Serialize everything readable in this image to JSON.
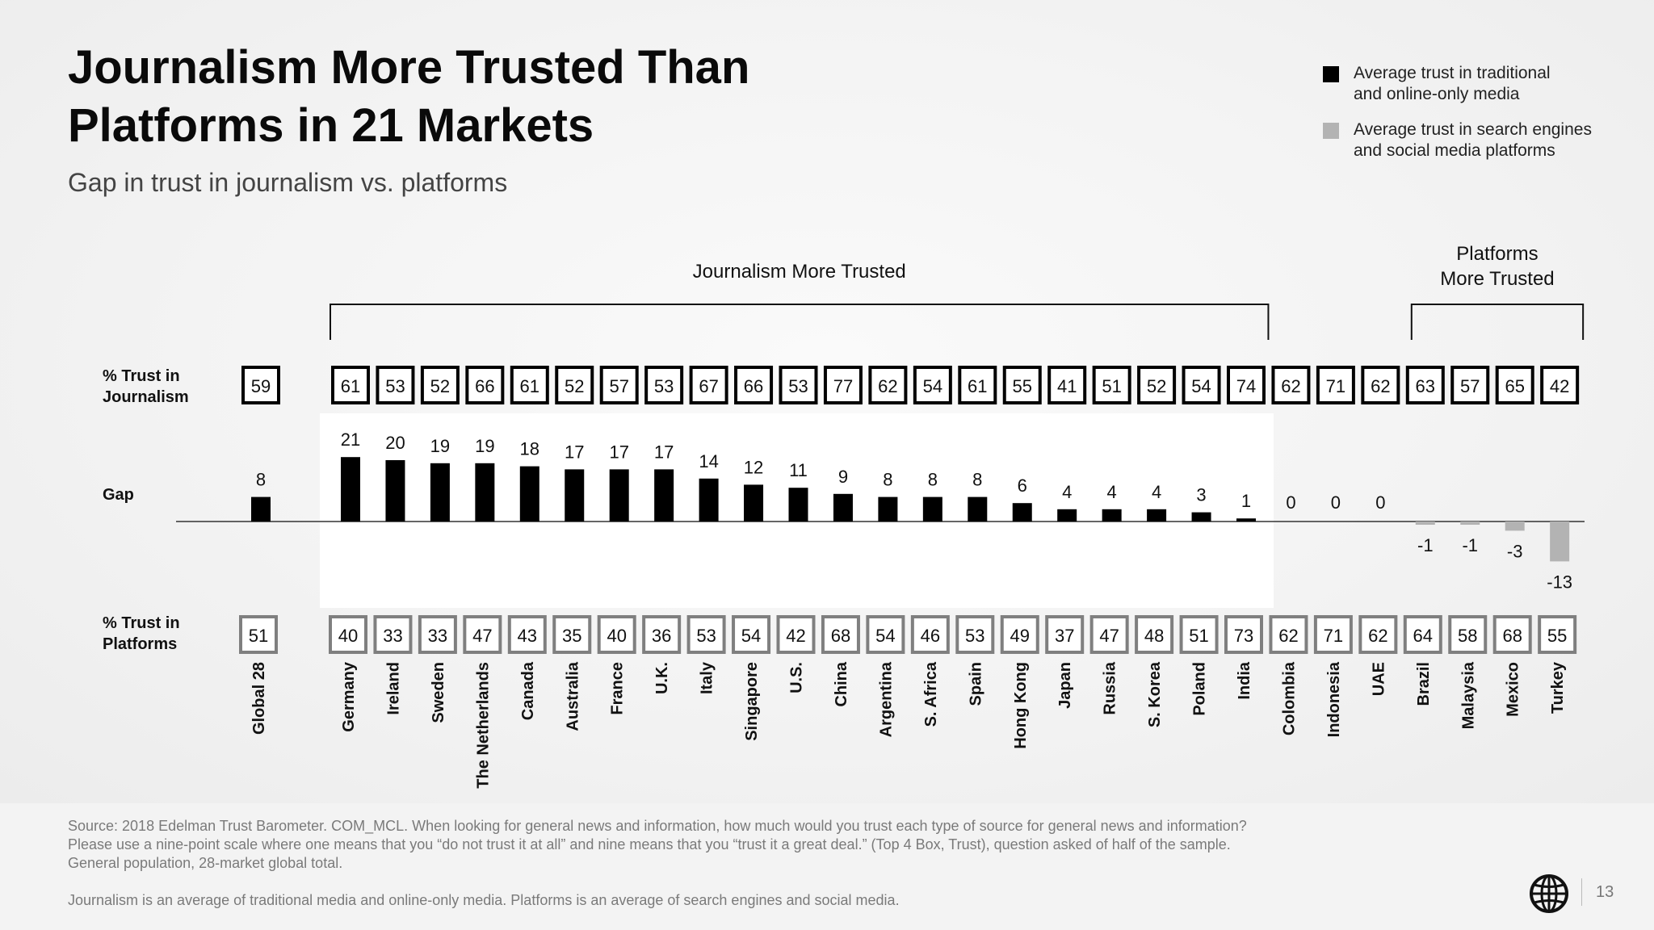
{
  "slide": {
    "title_line1": "Journalism More Trusted Than",
    "title_line2": "Platforms in 21 Markets",
    "subtitle": "Gap in trust in journalism vs. platforms",
    "source_line1": "Source: 2018 Edelman Trust Barometer. COM_MCL. When looking for general news and information, how much would you trust each type of source for general news and information? Please use a nine-point scale where one means that you “do not trust it at all” and nine means that you “trust it a great deal.” (Top 4 Box, Trust), question asked of half of the sample. General population, 28-market global total.",
    "source_line2": "Journalism is an average of traditional media and online-only media. Platforms is an average of search engines and social media.",
    "page_number": "13",
    "logo_icon": "globe-icon"
  },
  "legend": {
    "placement": "top-right",
    "items": [
      {
        "label_line1": "Average trust in traditional",
        "label_line2": "and online-only media",
        "color": "#000000"
      },
      {
        "label_line1": "Average trust in search engines",
        "label_line2": "and social media platforms",
        "color": "#b3b3b3"
      }
    ]
  },
  "chart_data": {
    "type": "bar",
    "row_labels": {
      "journalism_line1": "% Trust in",
      "journalism_line2": "Journalism",
      "gap": "Gap",
      "platforms_line1": "% Trust in",
      "platforms_line2": "Platforms"
    },
    "bracket_labels": {
      "journalism_more": "Journalism More Trusted",
      "platforms_more_line1": "Platforms",
      "platforms_more_line2": "More Trusted"
    },
    "colors": {
      "positive": "#000000",
      "negative": "#b3b3b3",
      "box_dark": "#000000",
      "box_gray": "#7f7f7f"
    },
    "categories": [
      "Global 28",
      "Germany",
      "Ireland",
      "Sweden",
      "The Netherlands",
      "Canada",
      "Australia",
      "France",
      "U.K.",
      "Italy",
      "Singapore",
      "U.S.",
      "China",
      "Argentina",
      "S. Africa",
      "Spain",
      "Hong Kong",
      "Japan",
      "Russia",
      "S. Korea",
      "Poland",
      "India",
      "Colombia",
      "Indonesia",
      "UAE",
      "Brazil",
      "Malaysia",
      "Mexico",
      "Turkey"
    ],
    "series": [
      {
        "name": "% Trust in Journalism",
        "values": [
          59,
          61,
          53,
          52,
          66,
          61,
          52,
          57,
          53,
          67,
          66,
          53,
          77,
          62,
          54,
          61,
          55,
          41,
          51,
          52,
          54,
          74,
          62,
          71,
          62,
          63,
          57,
          65,
          42
        ]
      },
      {
        "name": "Gap",
        "values": [
          8,
          21,
          20,
          19,
          19,
          18,
          17,
          17,
          17,
          14,
          12,
          11,
          9,
          8,
          8,
          8,
          6,
          4,
          4,
          4,
          3,
          1,
          0,
          0,
          0,
          -1,
          -1,
          -3,
          -13
        ]
      },
      {
        "name": "% Trust in Platforms",
        "values": [
          51,
          40,
          33,
          33,
          47,
          43,
          35,
          40,
          36,
          53,
          54,
          42,
          68,
          54,
          46,
          53,
          49,
          37,
          47,
          48,
          51,
          73,
          62,
          71,
          62,
          64,
          58,
          68,
          55
        ]
      }
    ],
    "ylim": [
      -13,
      21
    ]
  }
}
